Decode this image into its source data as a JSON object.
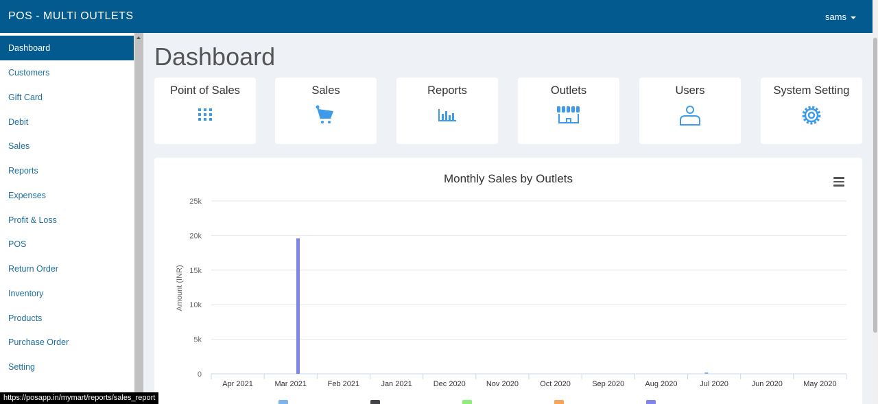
{
  "header": {
    "brand": "POS - MULTI OUTLETS",
    "user": "sams"
  },
  "sidebar": {
    "items": [
      {
        "label": "Dashboard",
        "active": true
      },
      {
        "label": "Customers"
      },
      {
        "label": "Gift Card"
      },
      {
        "label": "Debit"
      },
      {
        "label": "Sales"
      },
      {
        "label": "Reports"
      },
      {
        "label": "Expenses"
      },
      {
        "label": "Profit & Loss"
      },
      {
        "label": "POS"
      },
      {
        "label": "Return Order"
      },
      {
        "label": "Inventory"
      },
      {
        "label": "Products"
      },
      {
        "label": "Purchase Order"
      },
      {
        "label": "Setting"
      }
    ]
  },
  "main": {
    "title": "Dashboard",
    "tiles": [
      {
        "label": "Point of Sales",
        "icon": "grid-icon"
      },
      {
        "label": "Sales",
        "icon": "cart-icon"
      },
      {
        "label": "Reports",
        "icon": "bar-chart-icon"
      },
      {
        "label": "Outlets",
        "icon": "storefront-icon"
      },
      {
        "label": "Users",
        "icon": "user-icon"
      },
      {
        "label": "System Setting",
        "icon": "gear-icon"
      }
    ]
  },
  "colors": {
    "header": "#025a8e",
    "accent": "#3d9be9",
    "bar": "#8085e9"
  },
  "status_url": "https://posapp.in/mymart/reports/sales_report",
  "chart_data": {
    "type": "bar",
    "title": "Monthly Sales by Outlets",
    "ylabel": "Amount (INR)",
    "xlabel": "",
    "ylim": [
      0,
      25000
    ],
    "yticks": [
      "0",
      "5k",
      "10k",
      "15k",
      "20k",
      "25k"
    ],
    "ytick_values": [
      0,
      5000,
      10000,
      15000,
      20000,
      25000
    ],
    "categories": [
      "Apr 2021",
      "Mar 2021",
      "Feb 2021",
      "Jan 2021",
      "Dec 2020",
      "Nov 2020",
      "Oct 2020",
      "Sep 2020",
      "Aug 2020",
      "Jul 2020",
      "Jun 2020",
      "May 2020"
    ],
    "series": [
      {
        "color": "#7cb5ec",
        "values": [
          0,
          0,
          0,
          0,
          0,
          0,
          0,
          0,
          0,
          200,
          0,
          0
        ]
      },
      {
        "color": "#434348",
        "values": [
          0,
          0,
          0,
          0,
          0,
          0,
          0,
          0,
          0,
          0,
          0,
          0
        ]
      },
      {
        "color": "#90ed7d",
        "values": [
          0,
          0,
          0,
          0,
          0,
          0,
          0,
          0,
          0,
          0,
          0,
          0
        ]
      },
      {
        "color": "#f7a35c",
        "values": [
          0,
          0,
          0,
          0,
          0,
          0,
          0,
          0,
          0,
          0,
          0,
          0
        ]
      },
      {
        "color": "#8085e9",
        "values": [
          0,
          19600,
          0,
          0,
          0,
          0,
          0,
          0,
          0,
          0,
          0,
          0
        ]
      }
    ],
    "legend_position": "bottom",
    "grid": true
  }
}
